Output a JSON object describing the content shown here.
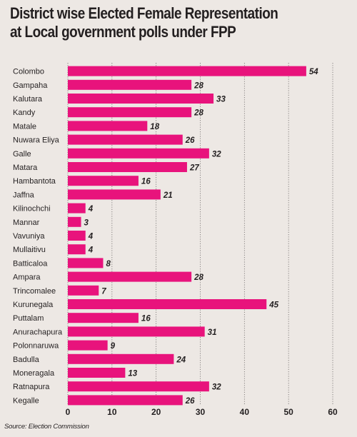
{
  "title_line1": "District wise Elected Female Representation",
  "title_line2": "at Local government polls under FPP",
  "source": "Source: Election Commission",
  "colors": {
    "bar": "#e8137c",
    "text": "#231f20",
    "grid": "#6e6a69",
    "background": "#ede8e4"
  },
  "chart_data": {
    "type": "bar",
    "orientation": "horizontal",
    "title": "District wise Elected Female Representation at Local government polls under FPP",
    "categories": [
      "Colombo",
      "Gampaha",
      "Kalutara",
      "Kandy",
      "Matale",
      "Nuwara Eliya",
      "Galle",
      "Matara",
      "Hambantota",
      "Jaffna",
      "Kilinochchi",
      "Mannar",
      "Vavuniya",
      "Mullaitivu",
      "Batticaloa",
      "Ampara",
      "Trincomalee",
      "Kurunegala",
      "Puttalam",
      "Anurachapura",
      "Polonnaruwa",
      "Badulla",
      "Moneragala",
      "Ratnapura",
      "Kegalle"
    ],
    "values": [
      54,
      28,
      33,
      28,
      18,
      26,
      32,
      27,
      16,
      21,
      4,
      3,
      4,
      4,
      8,
      28,
      7,
      45,
      16,
      31,
      9,
      24,
      13,
      32,
      26
    ],
    "xlim": [
      0,
      60
    ],
    "xticks": [
      0,
      10,
      20,
      30,
      40,
      50,
      60
    ],
    "grid": "vertical gridlines",
    "data_labels": true,
    "legend": "none"
  }
}
